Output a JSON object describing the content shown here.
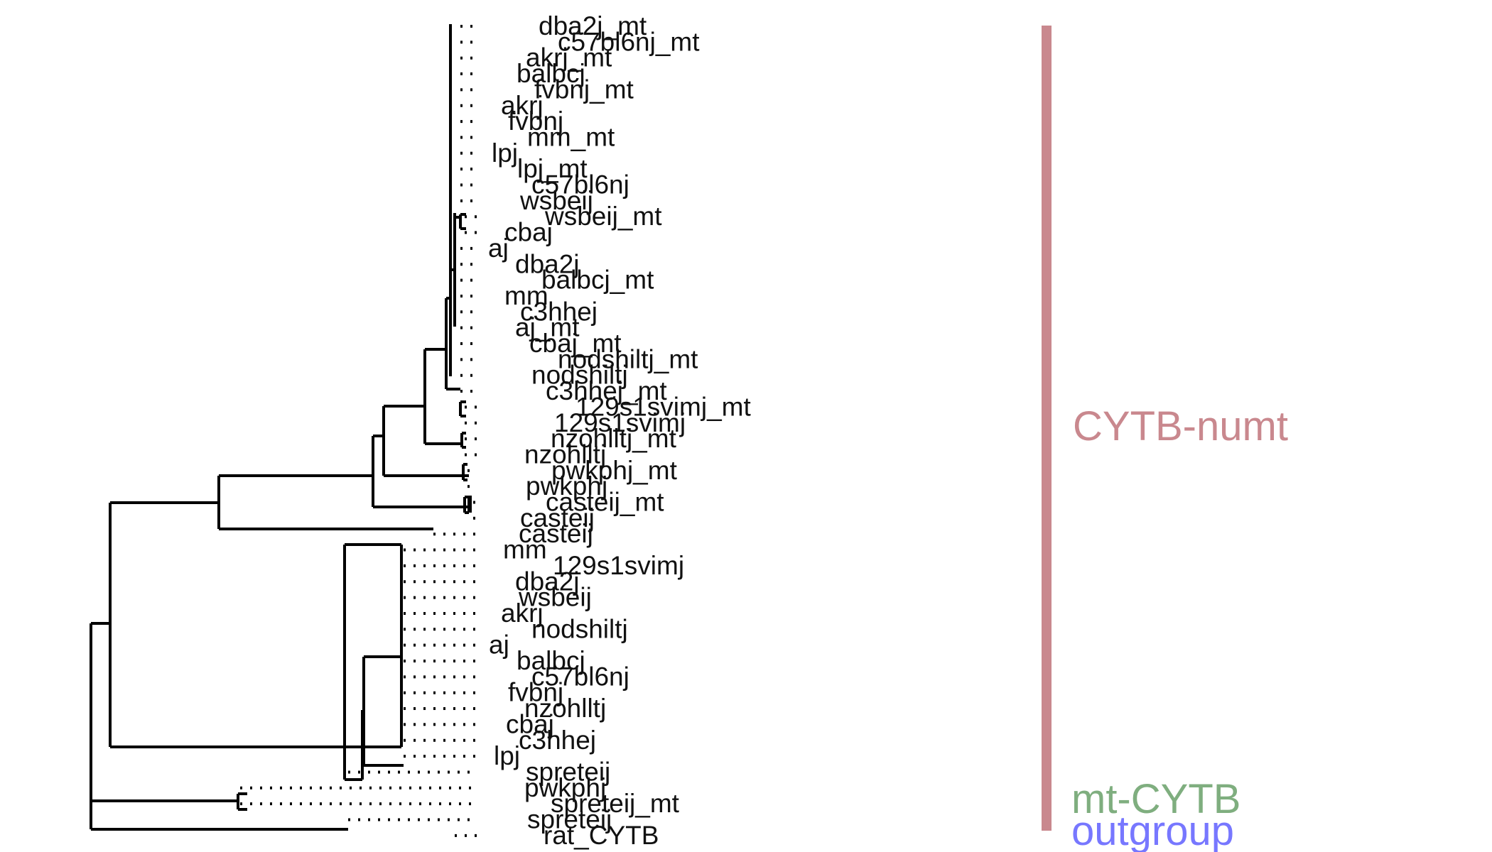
{
  "tree": {
    "tips": [
      "dba2j_mt",
      "c57bl6nj_mt",
      "akrj_mt",
      "balbcj",
      "fvbnj_mt",
      "akrj",
      "fvbnj",
      "mm_mt",
      "lpj",
      "lpj_mt",
      "c57bl6nj",
      "wsbeij",
      "wsbeij_mt",
      "cbaj",
      "aj",
      "dba2j",
      "balbcj_mt",
      "mm",
      "c3hhej",
      "aj_mt",
      "cbaj_mt",
      "nodshiltj_mt",
      "nodshiltj",
      "c3hhej_mt",
      "129s1svimj_mt",
      "129s1svimj",
      "nzohlltj_mt",
      "nzohlltj",
      "pwkphj_mt",
      "pwkphj",
      "casteij_mt",
      "casteij",
      "casteij",
      "mm",
      "129s1svimj",
      "dba2j",
      "wsbeij",
      "akrj",
      "nodshiltj",
      "aj",
      "balbcj",
      "c57bl6nj",
      "fvbnj",
      "nzohlltj",
      "cbaj",
      "c3hhej",
      "lpj",
      "spreteij",
      "pwkphj",
      "spreteij_mt",
      "spreteij",
      "rat_CYTB"
    ],
    "clades": [
      {
        "label": "CYTB-numt",
        "color": "#c9888e"
      },
      {
        "label": "mt-CYTB",
        "color": "#7fae7f"
      },
      {
        "label": "outgroup",
        "color": "#7777ff"
      }
    ],
    "line_color": "#000000"
  }
}
